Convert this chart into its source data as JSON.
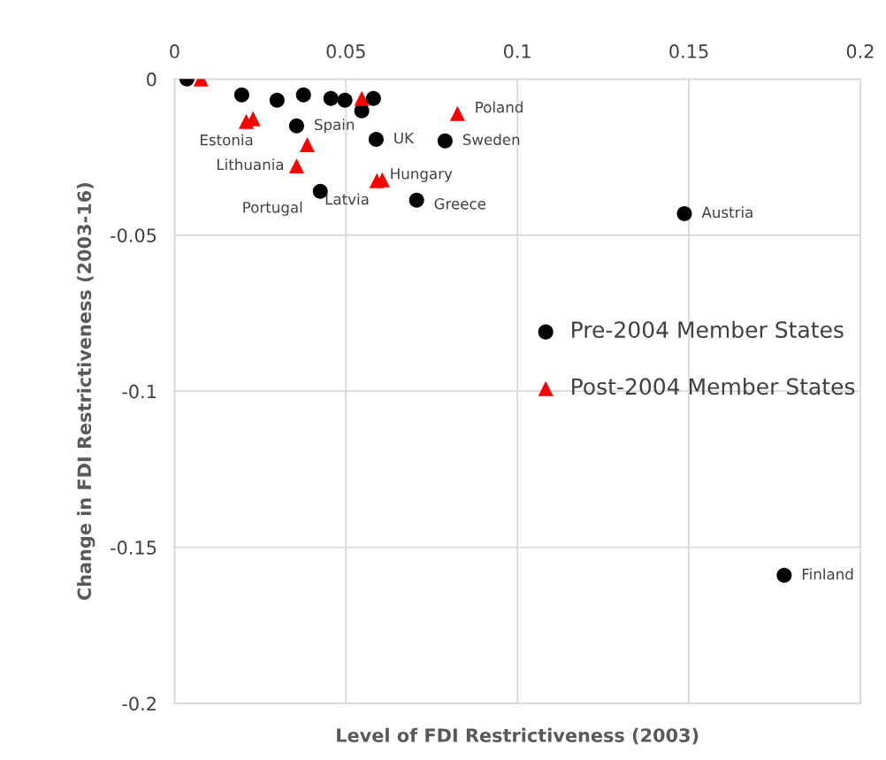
{
  "chart_data": {
    "type": "scatter",
    "xlabel": "Level of FDI Restrictiveness (2003)",
    "ylabel": "Change in FDI Restrictiveness (2003-16)",
    "xlim": [
      0,
      0.2
    ],
    "xticks": [
      0,
      0.05,
      0.1,
      0.15,
      0.2
    ],
    "ylim": [
      -0.2,
      0
    ],
    "yticks": [
      -0.2,
      -0.15,
      -0.1,
      -0.05,
      0
    ],
    "grid": true,
    "legend": "right",
    "series": [
      {
        "name": "Pre-2004 Member States",
        "color": "#000000",
        "marker": "circle",
        "x": [
          0.0036,
          0.0196,
          0.0299,
          0.0376,
          0.0456,
          0.0497,
          0.058,
          0.0546,
          0.0356,
          0.0588,
          0.0789,
          0.0425,
          0.0706,
          0.1487,
          0.1778
        ],
        "values": [
          0,
          -0.0051,
          -0.0068,
          -0.0051,
          -0.0062,
          -0.0068,
          -0.0062,
          -0.0102,
          -0.015,
          -0.0193,
          -0.0198,
          -0.036,
          -0.0388,
          -0.0431,
          -0.159
        ]
      },
      {
        "name": "Post-2004 Member States",
        "color": "#ff0000",
        "marker": "triangle",
        "x": [
          0.0077,
          0.0209,
          0.0229,
          0.0387,
          0.0356,
          0.0546,
          0.0825,
          0.059,
          0.0606
        ],
        "values": [
          0,
          -0.0136,
          -0.0127,
          -0.021,
          -0.0278,
          -0.0062,
          -0.011,
          -0.0326,
          -0.0323
        ]
      }
    ],
    "annotations": [
      {
        "text": "Spain",
        "x": 0.0356,
        "y": -0.015
      },
      {
        "text": "UK",
        "x": 0.0588,
        "y": -0.0193
      },
      {
        "text": "Sweden",
        "x": 0.0789,
        "y": -0.0198
      },
      {
        "text": "Portugal",
        "x": 0.0425,
        "y": -0.036
      },
      {
        "text": "Greece",
        "x": 0.0706,
        "y": -0.0388
      },
      {
        "text": "Austria",
        "x": 0.1487,
        "y": -0.0431
      },
      {
        "text": "Finland",
        "x": 0.1778,
        "y": -0.159
      },
      {
        "text": "Estonia",
        "x": 0.0209,
        "y": -0.0136
      },
      {
        "text": "Lithuania",
        "x": 0.0356,
        "y": -0.0278
      },
      {
        "text": "Poland",
        "x": 0.0825,
        "y": -0.011
      },
      {
        "text": "Latvia",
        "x": 0.059,
        "y": -0.0326
      },
      {
        "text": "Hungary",
        "x": 0.0606,
        "y": -0.0323
      }
    ]
  }
}
